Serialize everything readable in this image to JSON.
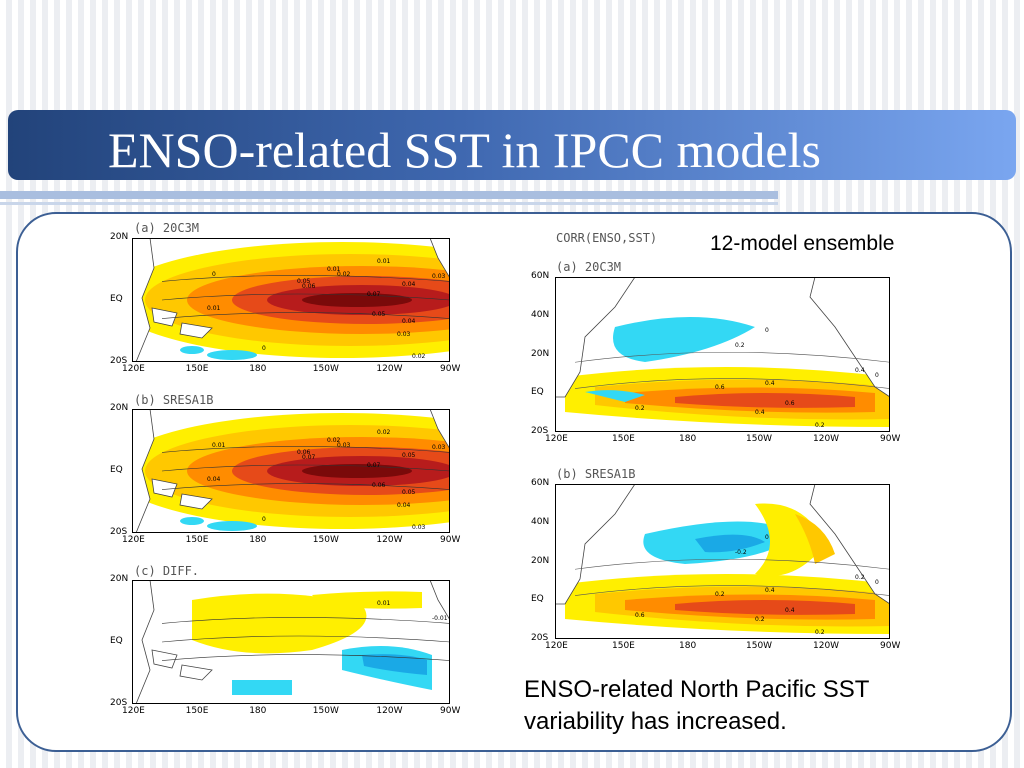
{
  "slide": {
    "title": "ENSO-related SST in IPCC models",
    "ensemble_label": "12-model ensemble",
    "note_line1": "ENSO-related North Pacific SST",
    "note_line2": "variability has increased."
  },
  "left_figure": {
    "panels": [
      {
        "label": "(a) 20C3M",
        "lat_ticks": [
          "20N",
          "EQ",
          "20S"
        ],
        "lon_ticks": [
          "120E",
          "150E",
          "180",
          "150W",
          "120W",
          "90W"
        ],
        "contour_labels": [
          "0.01",
          "0.03",
          "0.02",
          "0.01",
          "0.04",
          "0.05",
          "0.06",
          "0.07",
          "0.05",
          "0.04",
          "0.03",
          "0.02",
          "0.01",
          "0",
          "0"
        ]
      },
      {
        "label": "(b) SRESA1B",
        "lat_ticks": [
          "20N",
          "EQ",
          "20S"
        ],
        "lon_ticks": [
          "120E",
          "150E",
          "180",
          "150W",
          "120W",
          "90W"
        ],
        "contour_labels": [
          "0.02",
          "0.03",
          "0.03",
          "0.04",
          "0.05",
          "0.06",
          "0.07",
          "0.07",
          "0.06",
          "0.05",
          "0.04",
          "0.03",
          "0.02",
          "0.01",
          "0"
        ]
      },
      {
        "label": "(c) DIFF.",
        "lat_ticks": [
          "20N",
          "EQ",
          "20S"
        ],
        "lon_ticks": [
          "120E",
          "150E",
          "180",
          "150W",
          "120W",
          "90W"
        ],
        "contour_labels": [
          "0.01",
          "-0.01"
        ]
      }
    ]
  },
  "right_figure": {
    "header": "CORR(ENSO,SST)",
    "panels": [
      {
        "label": "(a) 20C3M",
        "lat_ticks": [
          "60N",
          "40N",
          "20N",
          "EQ",
          "20S"
        ],
        "lon_ticks": [
          "120E",
          "150E",
          "180",
          "150W",
          "120W",
          "90W"
        ],
        "contour_labels": [
          "0",
          "0.2",
          "0.4",
          "0.6",
          "0.4",
          "0.6",
          "0.2",
          "0.4",
          "0.2",
          "0"
        ]
      },
      {
        "label": "(b) SRESA1B",
        "lat_ticks": [
          "60N",
          "40N",
          "20N",
          "EQ",
          "20S"
        ],
        "lon_ticks": [
          "120E",
          "150E",
          "180",
          "150W",
          "120W",
          "90W"
        ],
        "contour_labels": [
          "0",
          "-0.2",
          "0.2",
          "0.2",
          "0.4",
          "0.4",
          "0.6",
          "0.2",
          "0.2",
          "0"
        ]
      }
    ]
  },
  "colors": {
    "title_bar_dark": "#22437a",
    "title_bar_light": "#7aa6f0",
    "frame_border": "#3c5f94",
    "warm_1": "#ffef00",
    "warm_2": "#ffc800",
    "warm_3": "#ff8c00",
    "warm_4": "#e64a19",
    "warm_5": "#b71c1c",
    "cool_1": "#33d8f4",
    "cool_2": "#1aa9e6"
  }
}
